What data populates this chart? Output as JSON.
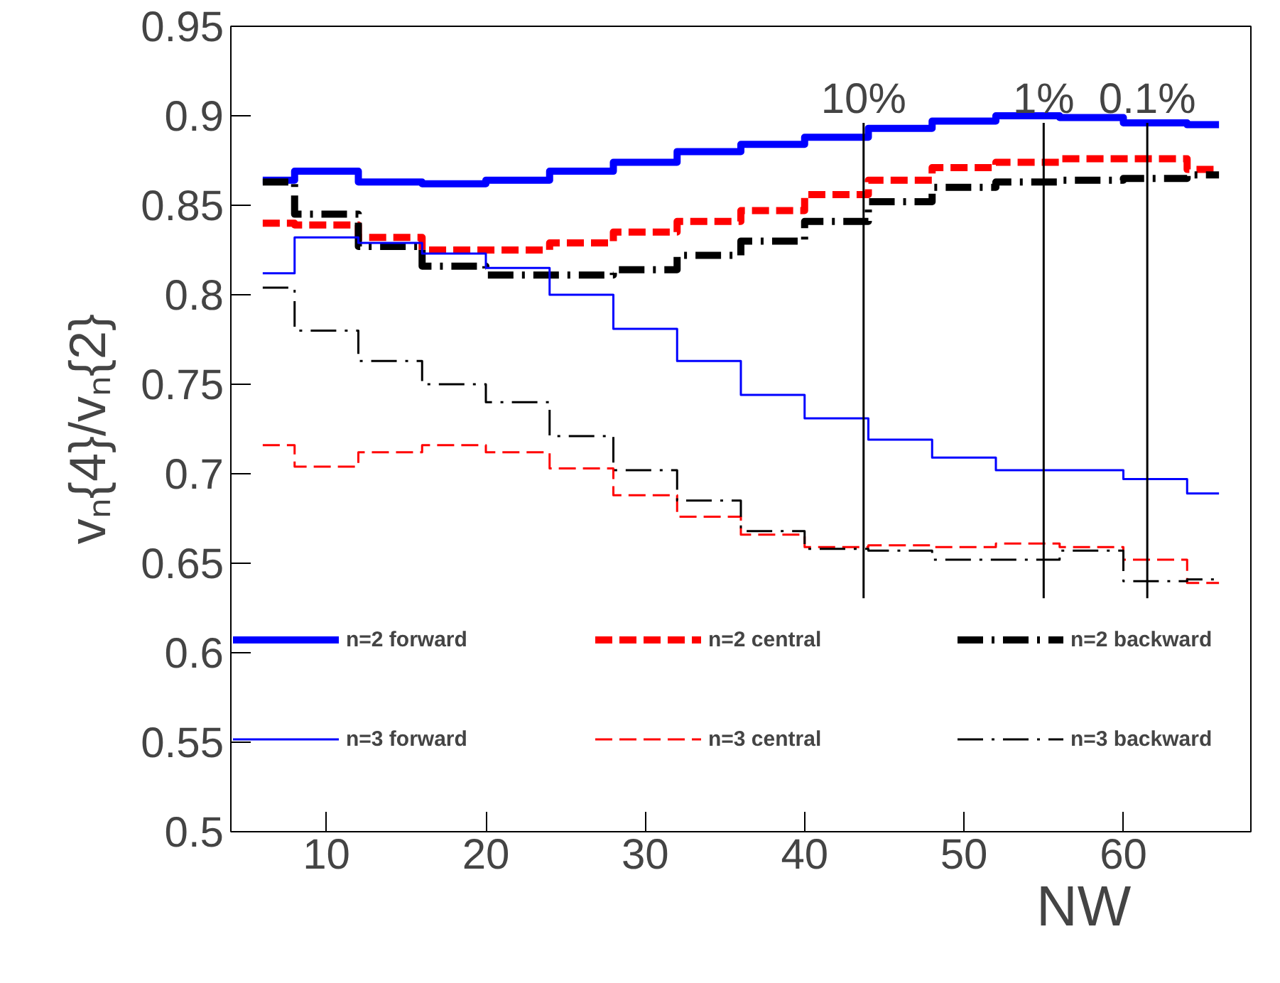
{
  "chart_data": {
    "type": "step",
    "xlabel": "NW",
    "ylabel": "vₙ{4}/vₙ{2}",
    "annotations": [
      "10%",
      "1%",
      "0.1%"
    ],
    "x": [
      6,
      10,
      14,
      18,
      22,
      26,
      30,
      34,
      38,
      42,
      46,
      50,
      54,
      58,
      62,
      66
    ],
    "series": [
      {
        "name": "n=2 forward",
        "color": "#0000ff",
        "line_style": "solid",
        "values": [
          0.864,
          0.869,
          0.863,
          0.862,
          0.864,
          0.869,
          0.874,
          0.88,
          0.884,
          0.888,
          0.893,
          0.897,
          0.9,
          0.899,
          0.896,
          0.895
        ]
      },
      {
        "name": "n=2 central",
        "color": "#ff0000",
        "line_style": "dashed",
        "values": [
          0.84,
          0.839,
          0.832,
          0.825,
          0.825,
          0.829,
          0.835,
          0.841,
          0.847,
          0.856,
          0.864,
          0.871,
          0.874,
          0.876,
          0.876,
          0.87
        ]
      },
      {
        "name": "n=2 backward",
        "color": "#000000",
        "line_style": "dashdot",
        "values": [
          0.863,
          0.845,
          0.827,
          0.816,
          0.811,
          0.811,
          0.814,
          0.822,
          0.83,
          0.841,
          0.852,
          0.86,
          0.863,
          0.864,
          0.865,
          0.867
        ]
      },
      {
        "name": "n=3 forward",
        "color": "#0000ff",
        "line_style": "solid",
        "values": [
          0.812,
          0.832,
          0.829,
          0.823,
          0.815,
          0.8,
          0.781,
          0.763,
          0.744,
          0.731,
          0.719,
          0.709,
          0.702,
          0.702,
          0.697,
          0.689
        ]
      },
      {
        "name": "n=3 central",
        "color": "#ff0000",
        "line_style": "dashed",
        "values": [
          0.716,
          0.704,
          0.712,
          0.716,
          0.712,
          0.703,
          0.688,
          0.676,
          0.666,
          0.659,
          0.66,
          0.659,
          0.661,
          0.659,
          0.652,
          0.639
        ]
      },
      {
        "name": "n=3 backward",
        "color": "#000000",
        "line_style": "dashdot",
        "values": [
          0.804,
          0.78,
          0.763,
          0.75,
          0.74,
          0.721,
          0.702,
          0.685,
          0.668,
          0.658,
          0.657,
          0.652,
          0.652,
          0.657,
          0.64,
          0.641
        ]
      }
    ],
    "ref_lines": [
      {
        "axis": "x",
        "value": 43.7,
        "color": "#000000"
      },
      {
        "axis": "x",
        "value": 55.0,
        "color": "#000000"
      },
      {
        "axis": "x",
        "value": 61.5,
        "color": "#000000"
      }
    ],
    "xlim": [
      4,
      68
    ],
    "ylim": [
      0.5,
      0.95
    ],
    "xticks": [
      10,
      20,
      30,
      40,
      50,
      60
    ],
    "yticks": [
      0.5,
      0.55,
      0.6,
      0.65,
      0.7,
      0.75,
      0.8,
      0.85,
      0.9,
      0.95
    ],
    "grid": false,
    "legend": "bottom"
  }
}
